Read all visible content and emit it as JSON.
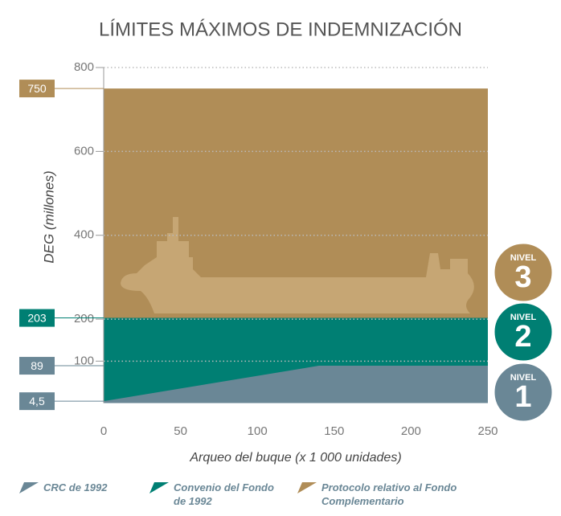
{
  "chart_data": {
    "type": "area",
    "title": "LÍMITES MÁXIMOS DE INDEMNIZACIÓN",
    "y_label": "DEG (millones)",
    "x_label": "Arqueo del buque (x 1 000 unidades)",
    "x": [
      0,
      140,
      250
    ],
    "xlim": [
      0,
      250
    ],
    "xticks": [
      0,
      50,
      100,
      150,
      200,
      250
    ],
    "ylim": [
      0,
      800
    ],
    "yticks": [
      100,
      200,
      400,
      600,
      800
    ],
    "grid": true,
    "series": [
      {
        "name": "CRC de 1992",
        "color": "#6a8796",
        "values": [
          4.5,
          89,
          89
        ]
      },
      {
        "name": "Convenio del Fondo de 1992",
        "color": "#007f73",
        "values": [
          203,
          203,
          203
        ]
      },
      {
        "name": "Protocolo relativo al Fondo Complementario",
        "color": "#b08d57",
        "values": [
          750,
          750,
          750
        ]
      }
    ],
    "limit_labels": [
      {
        "value": 750,
        "label": "750",
        "series": 2
      },
      {
        "value": 203,
        "label": "203",
        "series": 1
      },
      {
        "value": 89,
        "label": "89",
        "series": 0
      },
      {
        "value": 4.5,
        "label": "4,5",
        "series": 0
      }
    ],
    "badges": [
      {
        "word": "NIVEL",
        "number": "1",
        "series": 0
      },
      {
        "word": "NIVEL",
        "number": "2",
        "series": 1
      },
      {
        "word": "NIVEL",
        "number": "3",
        "series": 2
      }
    ]
  }
}
